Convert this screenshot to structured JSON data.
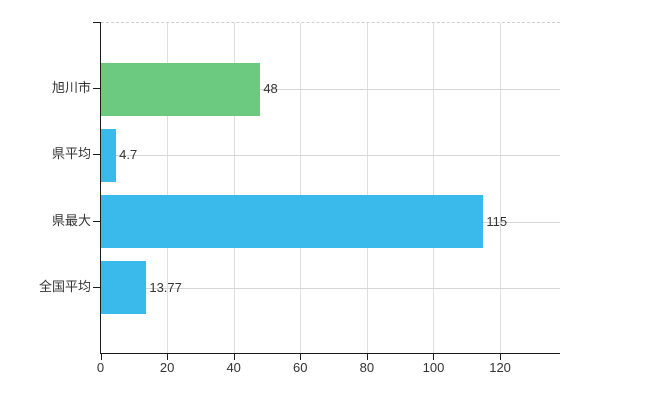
{
  "chart_data": {
    "type": "bar",
    "orientation": "horizontal",
    "title": "",
    "xlabel": "",
    "ylabel": "",
    "categories": [
      "旭川市",
      "県平均",
      "県最大",
      "全国平均"
    ],
    "values": [
      48,
      4.7,
      115,
      13.77
    ],
    "value_labels": [
      "48",
      "4.7",
      "115",
      "13.77"
    ],
    "bar_colors": [
      "#6cca80",
      "#39baeb",
      "#39baeb",
      "#39baeb"
    ],
    "xticks": [
      0,
      20,
      40,
      60,
      80,
      100,
      120
    ],
    "xtick_labels": [
      "0",
      "20",
      "40",
      "60",
      "80",
      "100",
      "120"
    ],
    "xlim": [
      0,
      138
    ],
    "grid": true,
    "legend": false
  },
  "colors": {
    "green_bar": "#6cca80",
    "blue_bar": "#39baeb",
    "axis": "#1b1b1b",
    "vertical_gridline": "#dedede",
    "horizontal_gridline": "#d6d6d6",
    "top_border": "#cfcfcf",
    "label_text": "#333333",
    "background": "#ffffff"
  }
}
